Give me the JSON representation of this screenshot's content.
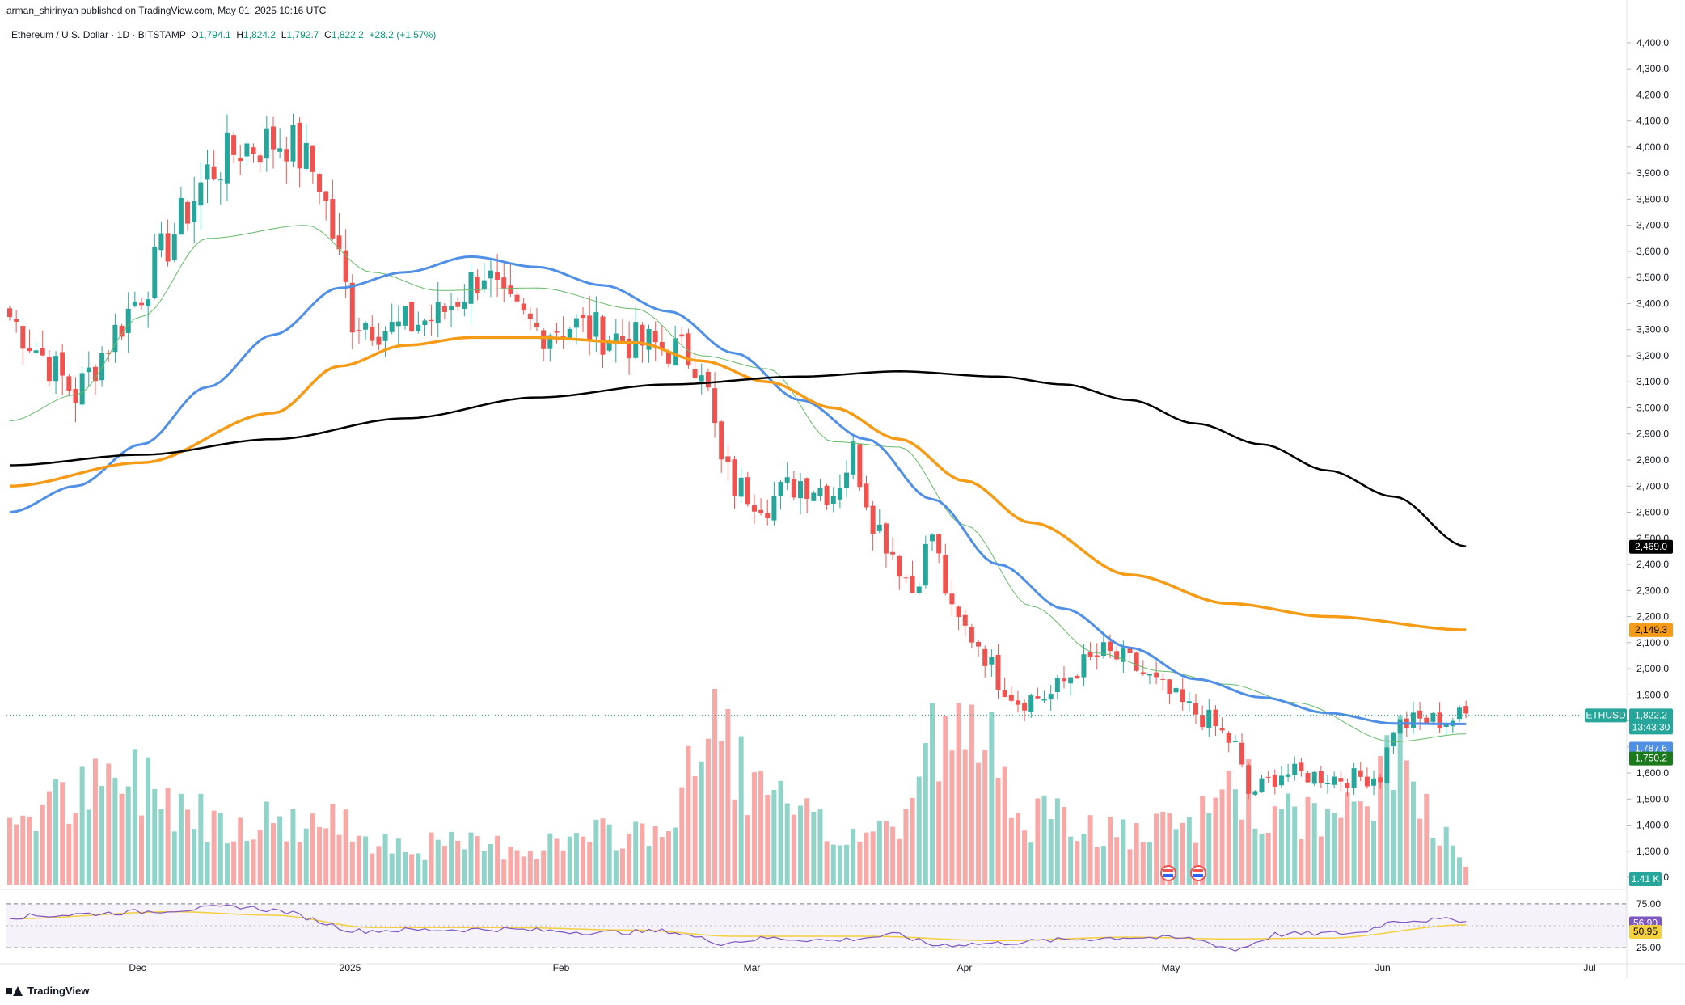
{
  "header": {
    "published": "arman_shirinyan published on TradingView.com, May 01, 2025 10:16 UTC",
    "symbol": "Ethereum / U.S. Dollar · 1D · BITSTAMP",
    "open_label": "O",
    "open": "1,794.1",
    "high_label": "H",
    "high": "1,824.2",
    "low_label": "L",
    "low": "1,792.7",
    "close_label": "C",
    "close": "1,822.2",
    "change": "+28.2 (+1.57%)"
  },
  "brand": "TradingView",
  "colors": {
    "up": "#26a69a",
    "down": "#ef5350",
    "vol_up": "#8fd3c9",
    "vol_down": "#f7a9a7",
    "ma20": "#66bb6a",
    "ma50": "#4f8fe6",
    "ma100": "#f59b16",
    "ma200": "#000000",
    "rsi": "#7e57c2",
    "rsi_ma": "#f4d03f"
  },
  "chart_data": {
    "type": "candlestick",
    "price_axis": {
      "ticks": [
        "4,400.0",
        "4,300.0",
        "4,200.0",
        "4,100.0",
        "4,000.0",
        "3,900.0",
        "3,800.0",
        "3,700.0",
        "3,600.0",
        "3,500.0",
        "3,400.0",
        "3,300.0",
        "3,200.0",
        "3,100.0",
        "3,000.0",
        "2,900.0",
        "2,800.0",
        "2,700.0",
        "2,600.0",
        "2,500.0",
        "2,400.0",
        "2,300.0",
        "2,200.0",
        "2,100.0",
        "2,000.0",
        "1,900.0",
        "1,800.0",
        "1,700.0",
        "1,600.0",
        "1,500.0",
        "1,400.0",
        "1,300.0",
        "1,200.0"
      ],
      "min": 1160,
      "max": 4440
    },
    "time_axis": {
      "labels": [
        "Dec",
        "2025",
        "Feb",
        "Mar",
        "Apr",
        "May",
        "Jun",
        "Jul"
      ]
    },
    "price_labels": {
      "ma200": "2,469.0",
      "ma100": "2,149.3",
      "symbol": "ETHUSD",
      "last": "1,822.2",
      "countdown": "13:43:30",
      "ma50": "1,787.6",
      "ma20": "1,750.2",
      "volume": "1.41 K"
    },
    "series_values": {
      "ma200": 2469.0,
      "ma100": 2149.3,
      "last": 1822.2,
      "ma50": 1787.6,
      "ma20": 1750.2
    },
    "ma_keypoints": {
      "ma200": [
        [
          0,
          2780
        ],
        [
          20,
          2820
        ],
        [
          40,
          2880
        ],
        [
          60,
          2960
        ],
        [
          80,
          3040
        ],
        [
          100,
          3090
        ],
        [
          120,
          3120
        ],
        [
          135,
          3140
        ],
        [
          150,
          3120
        ],
        [
          160,
          3090
        ],
        [
          170,
          3030
        ],
        [
          180,
          2940
        ],
        [
          190,
          2860
        ],
        [
          200,
          2760
        ],
        [
          210,
          2660
        ],
        [
          221,
          2469
        ]
      ],
      "ma100": [
        [
          0,
          2700
        ],
        [
          20,
          2790
        ],
        [
          40,
          2980
        ],
        [
          50,
          3160
        ],
        [
          60,
          3240
        ],
        [
          70,
          3270
        ],
        [
          80,
          3270
        ],
        [
          95,
          3250
        ],
        [
          105,
          3180
        ],
        [
          115,
          3100
        ],
        [
          125,
          3000
        ],
        [
          135,
          2880
        ],
        [
          145,
          2720
        ],
        [
          155,
          2560
        ],
        [
          170,
          2360
        ],
        [
          185,
          2250
        ],
        [
          200,
          2200
        ],
        [
          221,
          2149
        ]
      ],
      "ma50": [
        [
          0,
          2600
        ],
        [
          10,
          2700
        ],
        [
          20,
          2860
        ],
        [
          30,
          3080
        ],
        [
          40,
          3280
        ],
        [
          50,
          3460
        ],
        [
          60,
          3520
        ],
        [
          70,
          3580
        ],
        [
          80,
          3540
        ],
        [
          90,
          3470
        ],
        [
          100,
          3370
        ],
        [
          110,
          3210
        ],
        [
          120,
          3030
        ],
        [
          130,
          2880
        ],
        [
          140,
          2650
        ],
        [
          150,
          2400
        ],
        [
          160,
          2230
        ],
        [
          170,
          2080
        ],
        [
          180,
          1960
        ],
        [
          190,
          1890
        ],
        [
          200,
          1830
        ],
        [
          210,
          1790
        ],
        [
          221,
          1788
        ]
      ],
      "ma20": [
        [
          0,
          2950
        ],
        [
          10,
          3050
        ],
        [
          20,
          3350
        ],
        [
          30,
          3650
        ],
        [
          45,
          3700
        ],
        [
          55,
          3520
        ],
        [
          65,
          3450
        ],
        [
          80,
          3460
        ],
        [
          95,
          3380
        ],
        [
          105,
          3200
        ],
        [
          115,
          3150
        ],
        [
          125,
          2870
        ],
        [
          135,
          2850
        ],
        [
          145,
          2550
        ],
        [
          155,
          2240
        ],
        [
          165,
          2060
        ],
        [
          175,
          1990
        ],
        [
          185,
          1940
        ],
        [
          195,
          1870
        ],
        [
          210,
          1720
        ],
        [
          221,
          1750
        ]
      ]
    },
    "price_path": [
      [
        0,
        3350
      ],
      [
        10,
        3050
      ],
      [
        20,
        3450
      ],
      [
        30,
        3900
      ],
      [
        35,
        4000
      ],
      [
        42,
        4030
      ],
      [
        47,
        3880
      ],
      [
        52,
        3350
      ],
      [
        58,
        3300
      ],
      [
        65,
        3350
      ],
      [
        72,
        3530
      ],
      [
        75,
        3380
      ],
      [
        80,
        3300
      ],
      [
        85,
        3320
      ],
      [
        95,
        3250
      ],
      [
        100,
        3230
      ],
      [
        105,
        3180
      ],
      [
        108,
        2780
      ],
      [
        110,
        2700
      ],
      [
        115,
        2640
      ],
      [
        120,
        2720
      ],
      [
        125,
        2680
      ],
      [
        128,
        2830
      ],
      [
        131,
        2580
      ],
      [
        134,
        2450
      ],
      [
        137,
        2300
      ],
      [
        140,
        2520
      ],
      [
        143,
        2200
      ],
      [
        147,
        2100
      ],
      [
        150,
        1960
      ],
      [
        153,
        1880
      ],
      [
        158,
        1900
      ],
      [
        162,
        2000
      ],
      [
        166,
        2060
      ],
      [
        170,
        2020
      ],
      [
        174,
        1940
      ],
      [
        178,
        1860
      ],
      [
        182,
        1800
      ],
      [
        186,
        1700
      ],
      [
        188,
        1520
      ],
      [
        190,
        1550
      ],
      [
        193,
        1600
      ],
      [
        198,
        1590
      ],
      [
        203,
        1580
      ],
      [
        208,
        1590
      ],
      [
        210,
        1780
      ],
      [
        214,
        1800
      ],
      [
        218,
        1800
      ],
      [
        221,
        1822
      ]
    ],
    "volume_profile": [
      [
        0,
        0.35
      ],
      [
        20,
        0.55
      ],
      [
        30,
        0.35
      ],
      [
        52,
        0.3
      ],
      [
        60,
        0.2
      ],
      [
        80,
        0.2
      ],
      [
        100,
        0.3
      ],
      [
        108,
        0.9
      ],
      [
        112,
        0.5
      ],
      [
        125,
        0.25
      ],
      [
        135,
        0.3
      ],
      [
        140,
        0.75
      ],
      [
        150,
        0.7
      ],
      [
        155,
        0.35
      ],
      [
        170,
        0.25
      ],
      [
        180,
        0.3
      ],
      [
        186,
        0.6
      ],
      [
        190,
        0.35
      ],
      [
        205,
        0.35
      ],
      [
        210,
        0.7
      ],
      [
        214,
        0.45
      ],
      [
        221,
        0.15
      ]
    ],
    "rsi": {
      "levels": [
        "75.00",
        "25.00"
      ],
      "labels": {
        "rsi": "56.90",
        "rsi_ma": "50.95"
      },
      "values": {
        "rsi": 56.9,
        "rsi_ma": 50.95
      },
      "rsi_path": [
        [
          0,
          60
        ],
        [
          20,
          66
        ],
        [
          30,
          70
        ],
        [
          35,
          72
        ],
        [
          42,
          66
        ],
        [
          52,
          44
        ],
        [
          60,
          45
        ],
        [
          75,
          46
        ],
        [
          90,
          42
        ],
        [
          100,
          44
        ],
        [
          108,
          30
        ],
        [
          115,
          36
        ],
        [
          125,
          33
        ],
        [
          135,
          40
        ],
        [
          140,
          28
        ],
        [
          150,
          30
        ],
        [
          160,
          34
        ],
        [
          170,
          37
        ],
        [
          180,
          35
        ],
        [
          186,
          22
        ],
        [
          192,
          40
        ],
        [
          205,
          42
        ],
        [
          210,
          56
        ],
        [
          221,
          57
        ]
      ],
      "ma_path": [
        [
          0,
          58
        ],
        [
          25,
          66
        ],
        [
          40,
          62
        ],
        [
          55,
          48
        ],
        [
          75,
          48
        ],
        [
          95,
          45
        ],
        [
          110,
          38
        ],
        [
          130,
          38
        ],
        [
          150,
          33
        ],
        [
          170,
          37
        ],
        [
          185,
          35
        ],
        [
          200,
          36
        ],
        [
          221,
          51
        ]
      ]
    }
  }
}
